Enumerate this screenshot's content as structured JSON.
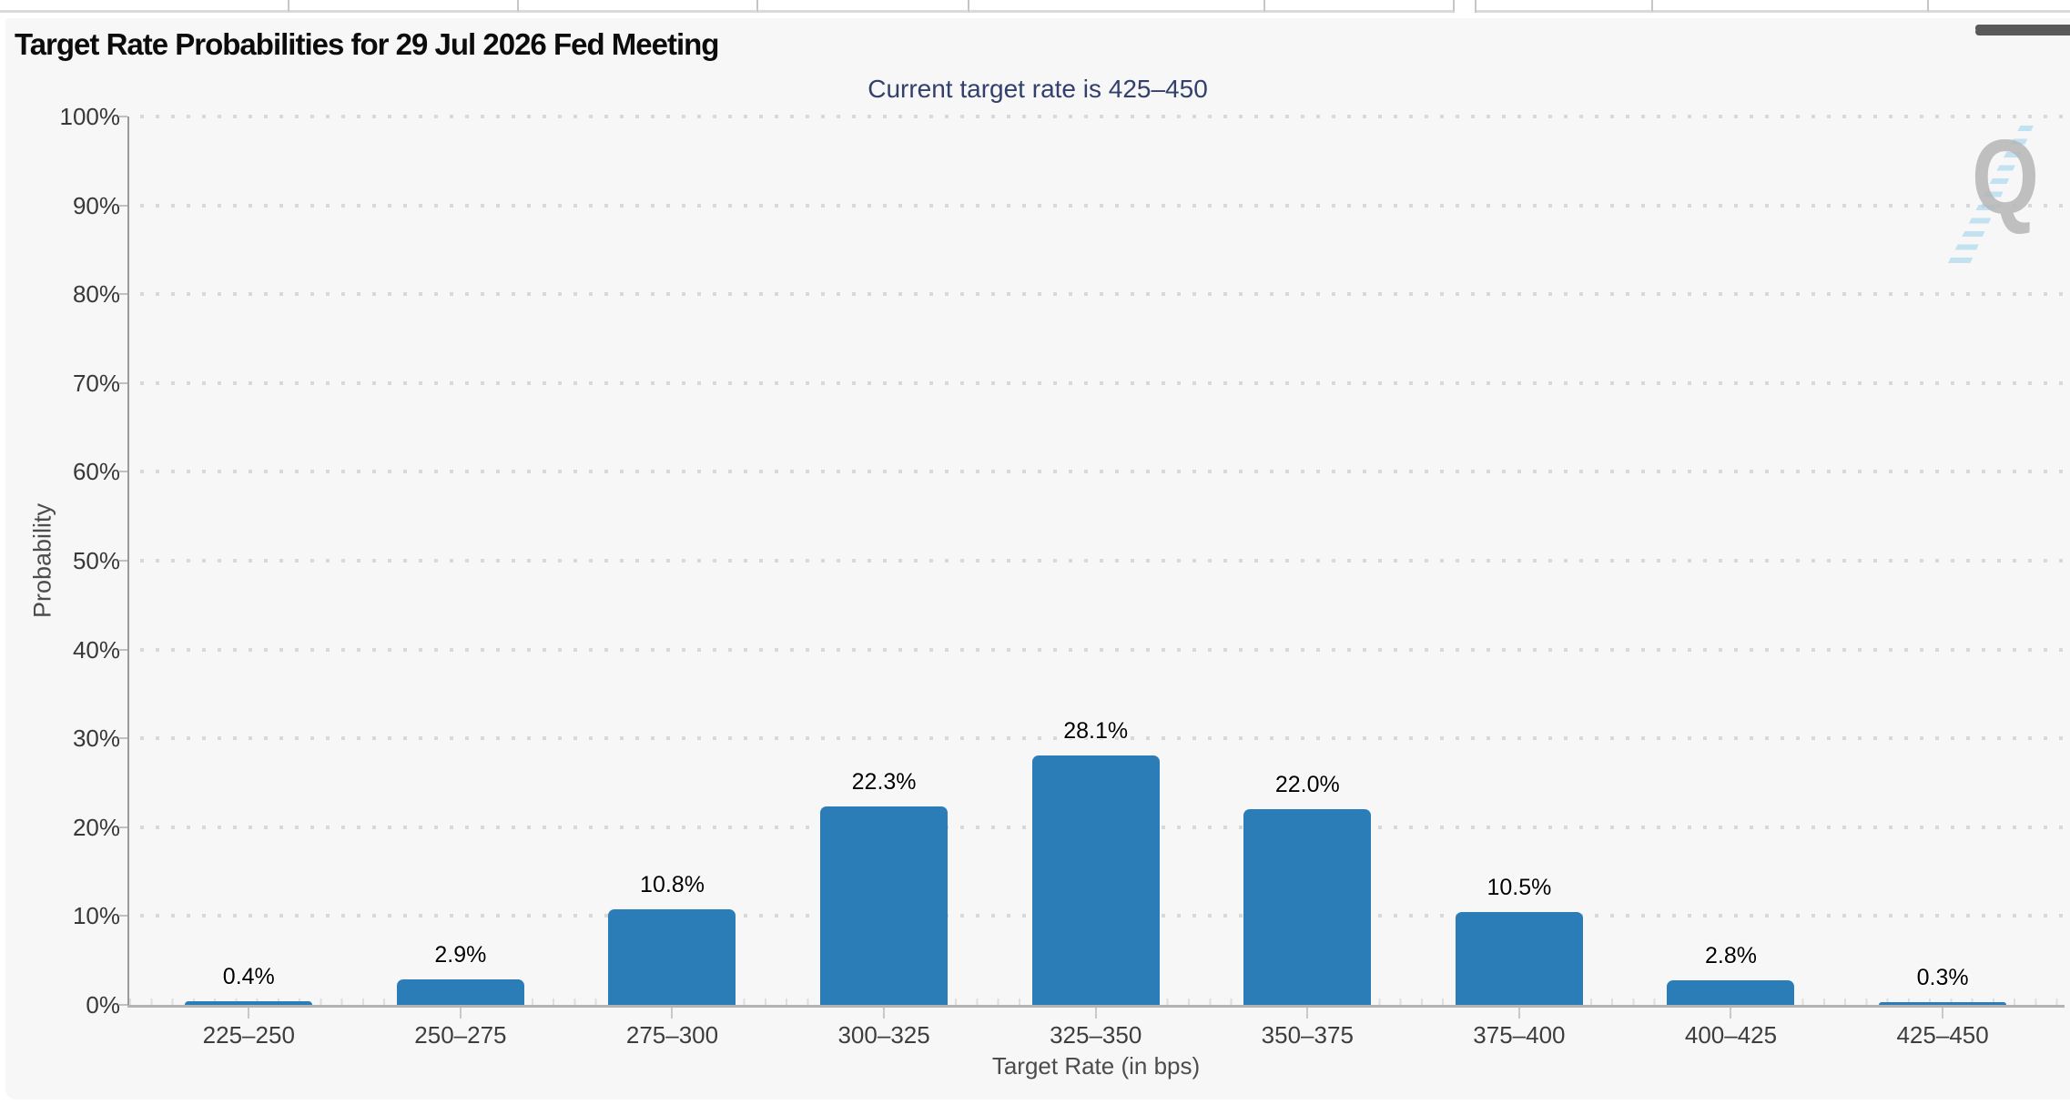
{
  "header": {
    "title": "Target Rate Probabilities for 29 Jul 2026 Fed Meeting",
    "menu_icon": "hamburger"
  },
  "chart_data": {
    "type": "bar",
    "title": "Target Rate Probabilities for 29 Jul 2026 Fed Meeting",
    "subtitle": "Current target rate is 425–450",
    "categories": [
      "225–250",
      "250–275",
      "275–300",
      "300–325",
      "325–350",
      "350–375",
      "375–400",
      "400–425",
      "425–450"
    ],
    "values": [
      0.4,
      2.9,
      10.8,
      22.3,
      28.1,
      22.0,
      10.5,
      2.8,
      0.3
    ],
    "value_labels": [
      "0.4%",
      "2.9%",
      "10.8%",
      "22.3%",
      "28.1%",
      "22.0%",
      "10.5%",
      "2.8%",
      "0.3%"
    ],
    "xlabel": "Target Rate (in bps)",
    "ylabel": "Probability",
    "ylim": [
      0,
      100
    ],
    "ytick_step": 10,
    "ytick_labels": [
      "0%",
      "10%",
      "20%",
      "30%",
      "40%",
      "50%",
      "60%",
      "70%",
      "80%",
      "90%",
      "100%"
    ],
    "grid": "dotted-horizontal",
    "legend": "none",
    "bar_color": "#2a7db7",
    "watermark_letter": "Q"
  },
  "colors": {
    "panel_background": "#f7f7f7",
    "bar": "#2a7db7",
    "subtitle_text": "#32406b",
    "axis_line": "#9a9a9a",
    "gridline": "#d9d9d9",
    "watermark_gray": "#b6b6b6",
    "watermark_blue": "#9fd4ef"
  }
}
